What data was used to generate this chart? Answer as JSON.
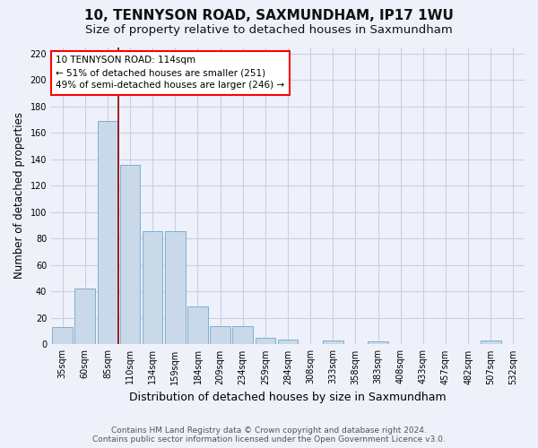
{
  "title": "10, TENNYSON ROAD, SAXMUNDHAM, IP17 1WU",
  "subtitle": "Size of property relative to detached houses in Saxmundham",
  "xlabel": "Distribution of detached houses by size in Saxmundham",
  "ylabel": "Number of detached properties",
  "categories": [
    "35sqm",
    "60sqm",
    "85sqm",
    "110sqm",
    "134sqm",
    "159sqm",
    "184sqm",
    "209sqm",
    "234sqm",
    "259sqm",
    "284sqm",
    "308sqm",
    "333sqm",
    "358sqm",
    "383sqm",
    "408sqm",
    "433sqm",
    "457sqm",
    "482sqm",
    "507sqm",
    "532sqm"
  ],
  "values": [
    13,
    42,
    169,
    136,
    86,
    86,
    29,
    14,
    14,
    5,
    4,
    0,
    3,
    0,
    2,
    0,
    0,
    0,
    0,
    3,
    0
  ],
  "bar_color": "#c9d9ea",
  "bar_edge_color": "#7faecf",
  "bar_linewidth": 0.7,
  "ylim": [
    0,
    225
  ],
  "yticks": [
    0,
    20,
    40,
    60,
    80,
    100,
    120,
    140,
    160,
    180,
    200,
    220
  ],
  "vline_x": 2.5,
  "vline_color": "#8b0000",
  "vline_linewidth": 1.2,
  "ann_line1": "10 TENNYSON ROAD: 114sqm",
  "ann_line2": "← 51% of detached houses are smaller (251)",
  "ann_line3": "49% of semi-detached houses are larger (246) →",
  "footer_line1": "Contains HM Land Registry data © Crown copyright and database right 2024.",
  "footer_line2": "Contains public sector information licensed under the Open Government Licence v3.0.",
  "background_color": "#eef1fa",
  "grid_color": "#c8d0e8",
  "title_fontsize": 11,
  "subtitle_fontsize": 9.5,
  "xlabel_fontsize": 9,
  "ylabel_fontsize": 8.5,
  "tick_fontsize": 7,
  "ann_fontsize": 7.5,
  "footer_fontsize": 6.5
}
